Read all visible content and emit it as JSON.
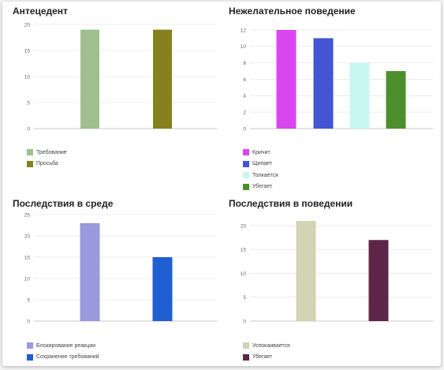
{
  "chart_data": [
    {
      "type": "bar",
      "title": "Антецедент",
      "categories": [
        "Требование",
        "Просьба"
      ],
      "values": [
        19,
        19
      ],
      "colors": [
        "#9fbf8f",
        "#85811f"
      ],
      "ylim": [
        0,
        20
      ],
      "yticks": [
        0,
        5,
        10,
        15,
        20
      ],
      "legend_position": "bottom-left",
      "grid": true
    },
    {
      "type": "bar",
      "title": "Нежелательное поведение",
      "categories": [
        "Кричит",
        "Щипает",
        "Толкается",
        "Убегает"
      ],
      "values": [
        12,
        11,
        8,
        7
      ],
      "colors": [
        "#d946ef",
        "#4355d3",
        "#c8f7f1",
        "#4c8f2c"
      ],
      "ylim": [
        0,
        12
      ],
      "yticks": [
        0,
        2,
        4,
        6,
        8,
        10,
        12
      ],
      "legend_position": "bottom-left",
      "grid": true
    },
    {
      "type": "bar",
      "title": "Последствия в среде",
      "categories": [
        "Блокирование реакции",
        "Сохранение требований"
      ],
      "values": [
        23,
        15
      ],
      "colors": [
        "#9999dd",
        "#1f5fd1"
      ],
      "ylim": [
        0,
        25
      ],
      "yticks": [
        0,
        5,
        10,
        15,
        20,
        25
      ],
      "legend_position": "bottom-left",
      "grid": true
    },
    {
      "type": "bar",
      "title": "Последствия в поведении",
      "categories": [
        "Успокаивается",
        "Убегает"
      ],
      "values": [
        21,
        17
      ],
      "colors": [
        "#d1d4b5",
        "#5e2549"
      ],
      "ylim": [
        0,
        22
      ],
      "yticks": [
        0,
        5,
        10,
        15,
        20
      ],
      "legend_position": "bottom-left",
      "grid": true
    }
  ]
}
